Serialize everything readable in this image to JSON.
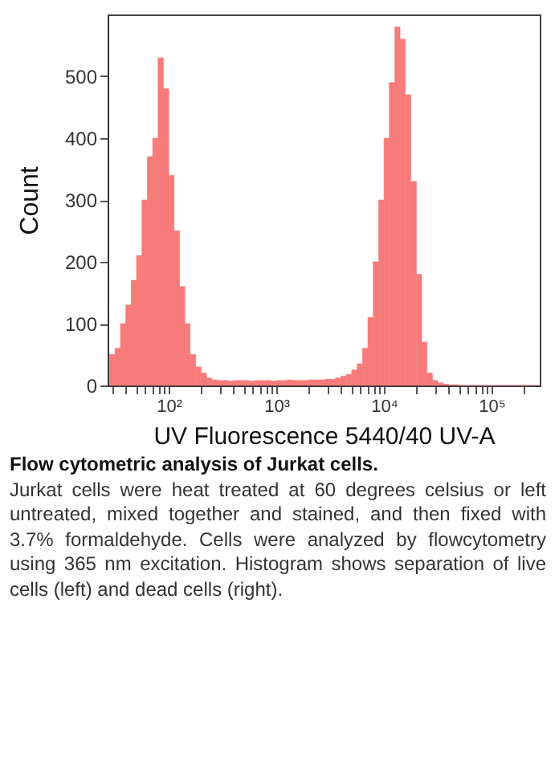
{
  "chart_data": {
    "type": "histogram",
    "title": "Flow cytometric analysis of Jurkat cells.",
    "annotations": [
      "Jurkat cells were heat treated at 60 degrees celsius or left untreated, mixed together and stained, and then fixed with 3.7% formaldehyde. Cells were analyzed by flowcytometry using 365 nm excitation. Histogram shows separation of live cells (left) and dead cells (right)."
    ],
    "xlabel": "UV Fluorescence 5440/40 UV-A",
    "ylabel": "Count",
    "log": "x",
    "color": "#f77b7b",
    "grid": false,
    "xlim": [
      27,
      280000
    ],
    "ylim": [
      0,
      600
    ],
    "xticks": [
      {
        "value": 30,
        "label": null
      },
      {
        "value": 40,
        "label": null
      },
      {
        "value": 50,
        "label": null
      },
      {
        "value": 60,
        "label": null
      },
      {
        "value": 70,
        "label": null
      },
      {
        "value": 80,
        "label": null
      },
      {
        "value": 90,
        "label": null
      },
      {
        "value": 100,
        "label": "10²"
      },
      {
        "value": 200,
        "label": null
      },
      {
        "value": 300,
        "label": null
      },
      {
        "value": 400,
        "label": null
      },
      {
        "value": 500,
        "label": null
      },
      {
        "value": 600,
        "label": null
      },
      {
        "value": 700,
        "label": null
      },
      {
        "value": 800,
        "label": null
      },
      {
        "value": 900,
        "label": null
      },
      {
        "value": 1000,
        "label": "10³"
      },
      {
        "value": 2000,
        "label": null
      },
      {
        "value": 3000,
        "label": null
      },
      {
        "value": 4000,
        "label": null
      },
      {
        "value": 5000,
        "label": null
      },
      {
        "value": 6000,
        "label": null
      },
      {
        "value": 7000,
        "label": null
      },
      {
        "value": 8000,
        "label": null
      },
      {
        "value": 9000,
        "label": null
      },
      {
        "value": 10000,
        "label": "10⁴"
      },
      {
        "value": 20000,
        "label": null
      },
      {
        "value": 30000,
        "label": null
      },
      {
        "value": 40000,
        "label": null
      },
      {
        "value": 50000,
        "label": null
      },
      {
        "value": 60000,
        "label": null
      },
      {
        "value": 70000,
        "label": null
      },
      {
        "value": 80000,
        "label": null
      },
      {
        "value": 90000,
        "label": null
      },
      {
        "value": 100000,
        "label": "10⁵"
      },
      {
        "value": 200000,
        "label": null
      }
    ],
    "yticks": [
      0,
      100,
      200,
      300,
      400,
      500
    ],
    "bins": [
      28.2,
      31.6,
      35.5,
      39.8,
      44.7,
      50.1,
      56.2,
      63.1,
      70.8,
      79.4,
      89.1,
      100,
      112,
      126,
      141,
      158,
      178,
      200,
      224,
      251,
      282,
      316,
      355,
      398,
      447,
      501,
      562,
      631,
      708,
      794,
      891,
      1000,
      1120,
      1260,
      1410,
      1580,
      1780,
      2000,
      2240,
      2510,
      2820,
      3160,
      3550,
      3980,
      4470,
      5010,
      5620,
      6310,
      7080,
      7940,
      8910,
      10000,
      11200,
      12600,
      14100,
      15800,
      17800,
      20000,
      22400,
      25100,
      28200,
      31600,
      35500,
      39800,
      44700,
      50100,
      56200,
      63100,
      70800,
      79400,
      89100,
      100000,
      112000,
      126000,
      141000,
      158000,
      178000,
      200000,
      224000,
      251000
    ],
    "values": [
      50,
      60,
      100,
      130,
      170,
      210,
      300,
      370,
      400,
      530,
      480,
      340,
      250,
      160,
      100,
      50,
      30,
      20,
      12,
      9,
      8,
      8,
      7,
      8,
      8,
      8,
      7,
      8,
      8,
      8,
      7,
      8,
      8,
      9,
      8,
      8,
      8,
      9,
      9,
      9,
      10,
      10,
      12,
      15,
      18,
      25,
      35,
      60,
      110,
      200,
      300,
      400,
      490,
      580,
      560,
      470,
      330,
      180,
      70,
      20,
      8,
      4,
      2,
      1,
      1,
      0,
      0,
      0,
      0,
      0,
      0,
      0,
      0,
      0,
      0,
      0,
      0,
      0,
      0
    ]
  }
}
